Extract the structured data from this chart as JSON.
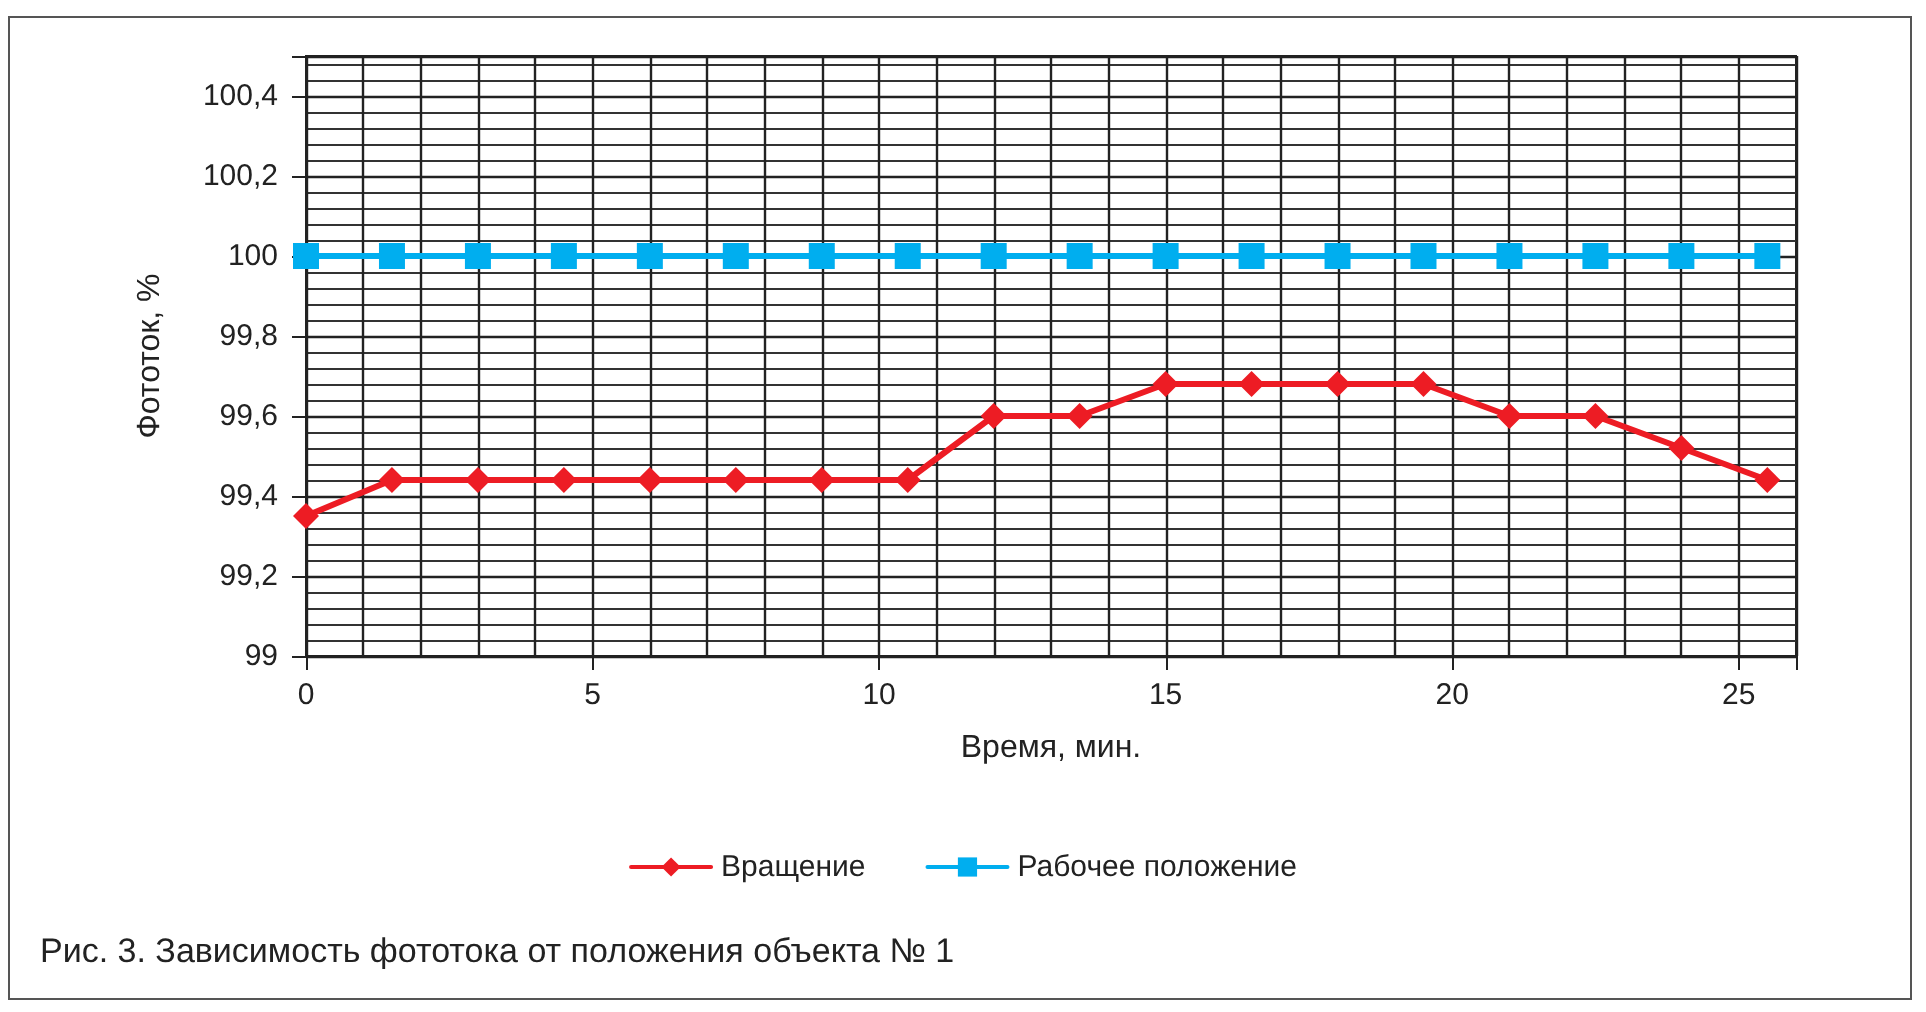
{
  "chart_data": {
    "type": "line",
    "xlabel": "Время, мин.",
    "ylabel": "Фототок, %",
    "annotations": [
      "Рис. 3. Зависимость фототока от положения объекта № 1"
    ],
    "x": [
      0,
      1.5,
      3,
      4.5,
      6,
      7.5,
      9,
      10.5,
      12,
      13.5,
      15,
      16.5,
      18,
      19.5,
      21,
      22.5,
      24,
      25.5
    ],
    "series": [
      {
        "name": "Вращение",
        "color": "#ed1c24",
        "marker": "diamond",
        "values": [
          99.35,
          99.44,
          99.44,
          99.44,
          99.44,
          99.44,
          99.44,
          99.44,
          99.6,
          99.6,
          99.68,
          99.68,
          99.68,
          99.68,
          99.6,
          99.6,
          99.52,
          99.44
        ]
      },
      {
        "name": "Рабочее положение",
        "color": "#00aeef",
        "marker": "square",
        "values": [
          100,
          100,
          100,
          100,
          100,
          100,
          100,
          100,
          100,
          100,
          100,
          100,
          100,
          100,
          100,
          100,
          100,
          100
        ]
      }
    ],
    "xlim": [
      0,
      26
    ],
    "xticks": [
      0,
      5,
      10,
      15,
      20,
      25
    ],
    "ylim": [
      99,
      100.5
    ],
    "yticks": [
      99,
      {
        "value": 99.2,
        "label": "99,2"
      },
      {
        "value": 99.4,
        "label": "99,4"
      },
      {
        "value": 99.6,
        "label": "99,6"
      },
      {
        "value": 99.8,
        "label": "99,8"
      },
      100,
      {
        "value": 100.2,
        "label": "100,2"
      },
      {
        "value": 100.4,
        "label": "100,4"
      }
    ],
    "grid": true,
    "legend": "bottom",
    "line_style": "solid"
  }
}
